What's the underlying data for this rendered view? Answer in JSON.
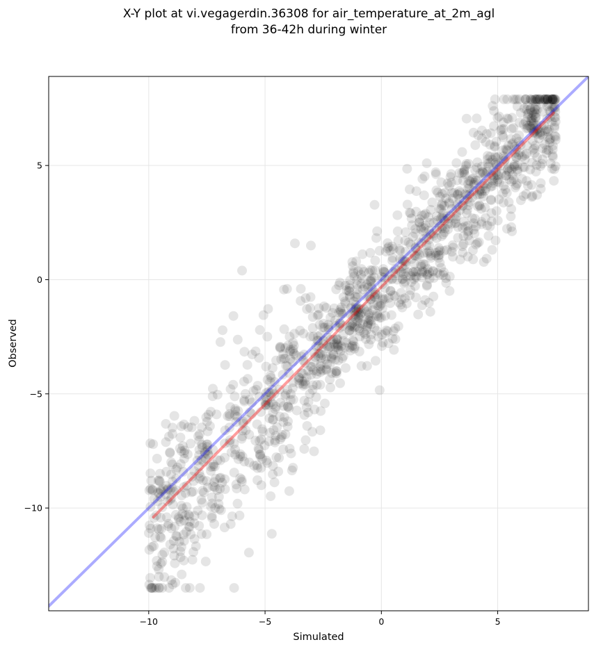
{
  "chart_data": {
    "type": "scatter",
    "title": [
      "X-Y plot at vi.vegagerdin.36308 for air_temperature_at_2m_agl",
      "from 36-42h during winter"
    ],
    "xlabel": "Simulated",
    "ylabel": "Observed",
    "xlim": [
      -14.3,
      8.9
    ],
    "ylim": [
      -14.5,
      8.9
    ],
    "xticks": [
      -10,
      -5,
      0,
      5
    ],
    "yticks": [
      -10,
      -5,
      0,
      5
    ],
    "xtick_labels": [
      "−10",
      "−5",
      "0",
      "5"
    ],
    "ytick_labels": [
      "−10",
      "−5",
      "0",
      "5"
    ],
    "grid": true,
    "point_color": "#000000",
    "point_alpha": 0.1,
    "series": [
      {
        "kind": "line",
        "color": "#0000ff",
        "alpha": 0.33,
        "x": [
          -14.3,
          8.9
        ],
        "y": [
          -14.3,
          8.9
        ]
      },
      {
        "kind": "line",
        "color": "#ff0000",
        "alpha": 0.38,
        "x": [
          -9.8,
          7.4
        ],
        "y": [
          -10.4,
          7.3
        ]
      },
      {
        "kind": "scatter",
        "point_count": 1400,
        "x_range": [
          -10,
          7.5
        ],
        "y_range": [
          -13.5,
          7.9
        ],
        "trend": {
          "slope": 1.05,
          "intercept": -0.5
        },
        "residual_spread": 1.5
      }
    ]
  }
}
